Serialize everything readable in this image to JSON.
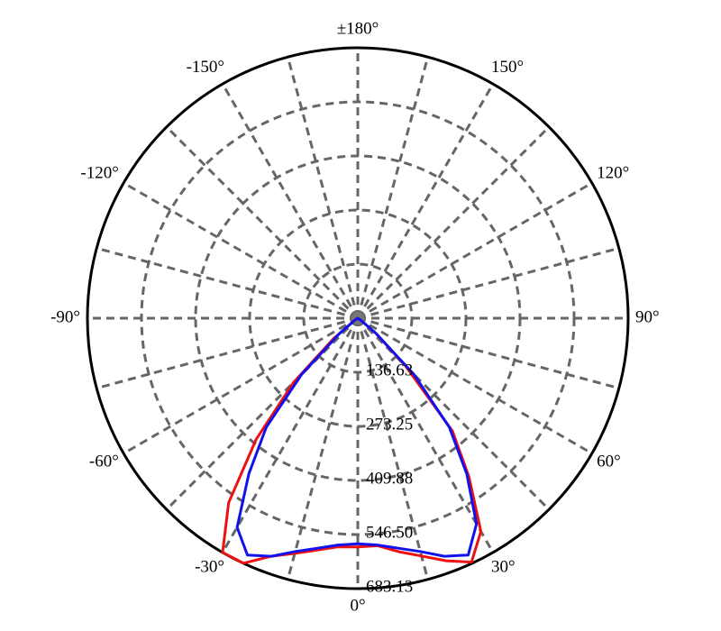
{
  "chart_data": {
    "type": "polar",
    "theta": [
      -60,
      -55,
      -50,
      -45,
      -40,
      -35,
      -30,
      -25,
      -20,
      -15,
      -10,
      -5,
      0,
      5,
      10,
      15,
      20,
      25,
      30,
      35,
      40,
      45,
      50,
      55,
      60
    ],
    "series": [
      {
        "color": "#ee1111",
        "values": [
          0,
          10,
          80,
          230,
          400,
          569,
          683,
          683,
          640,
          615,
          595,
          580,
          578,
          577,
          599,
          622,
          652,
          680,
          622,
          490,
          372,
          170,
          60,
          10,
          0
        ]
      },
      {
        "color": "#1111ee",
        "values": [
          0,
          10,
          60,
          200,
          360,
          480,
          610,
          660,
          640,
          610,
          590,
          575,
          570,
          575,
          590,
          610,
          640,
          660,
          600,
          480,
          360,
          200,
          60,
          10,
          0
        ]
      }
    ],
    "rlim": [
      0,
      683.13
    ],
    "rticks": [
      136.63,
      273.25,
      409.88,
      {
        "value": 546.5,
        "label": "546.50"
      },
      683.13
    ],
    "thetaticks": [
      {
        "value": -150,
        "label": "-150°"
      },
      {
        "value": -120,
        "label": "-120°"
      },
      {
        "value": -90,
        "label": "-90°"
      },
      {
        "value": -60,
        "label": "-60°"
      },
      {
        "value": -30,
        "label": "-30°"
      },
      {
        "value": 0,
        "label": "0°"
      },
      {
        "value": 30,
        "label": "30°"
      },
      {
        "value": 60,
        "label": "60°"
      },
      {
        "value": 90,
        "label": "90°"
      },
      {
        "value": 120,
        "label": "120°"
      },
      {
        "value": 150,
        "label": "150°"
      },
      {
        "value": 180,
        "label": "±180°"
      }
    ],
    "grid": true
  }
}
